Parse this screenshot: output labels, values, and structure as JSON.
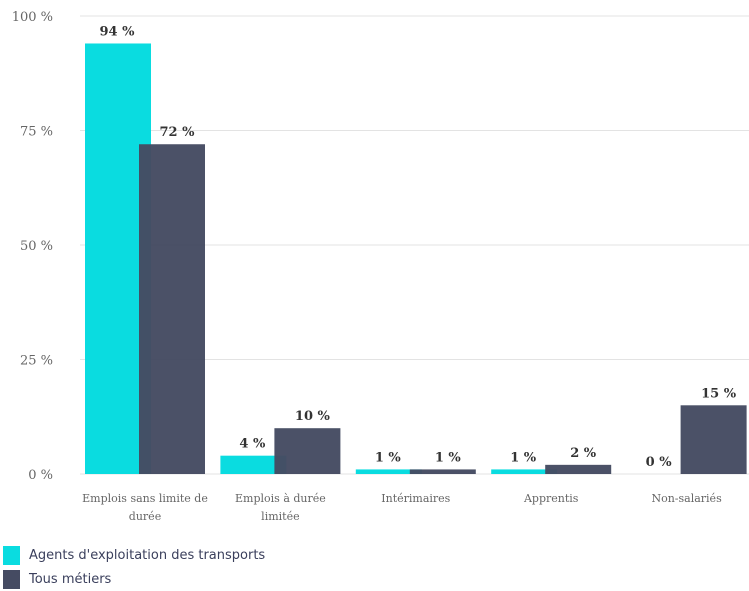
{
  "chart_data": {
    "type": "bar",
    "categories": [
      "Emplois sans limite de durée",
      "Emplois à durée limitée",
      "Intérimaires",
      "Apprentis",
      "Non-salariés"
    ],
    "series": [
      {
        "name": "Agents d'exploitation des transports",
        "color": "#0adce0",
        "values": [
          94,
          4,
          1,
          1,
          0
        ],
        "labels": [
          "94 %",
          "4 %",
          "1 %",
          "1 %",
          "0 %"
        ]
      },
      {
        "name": "Tous métiers",
        "color": "#454b62",
        "values": [
          72,
          10,
          1,
          2,
          15
        ],
        "labels": [
          "72 %",
          "10 %",
          "1 %",
          "2 %",
          "15 %"
        ]
      }
    ],
    "yticks": [
      {
        "value": 0,
        "label": "0 %"
      },
      {
        "value": 25,
        "label": "25 %"
      },
      {
        "value": 50,
        "label": "50 %"
      },
      {
        "value": 75,
        "label": "75 %"
      },
      {
        "value": 100,
        "label": "100 %"
      }
    ],
    "ylim": [
      0,
      100
    ],
    "title": "",
    "xlabel": "",
    "ylabel": "",
    "grid": true,
    "legend_position": "bottom-left"
  }
}
